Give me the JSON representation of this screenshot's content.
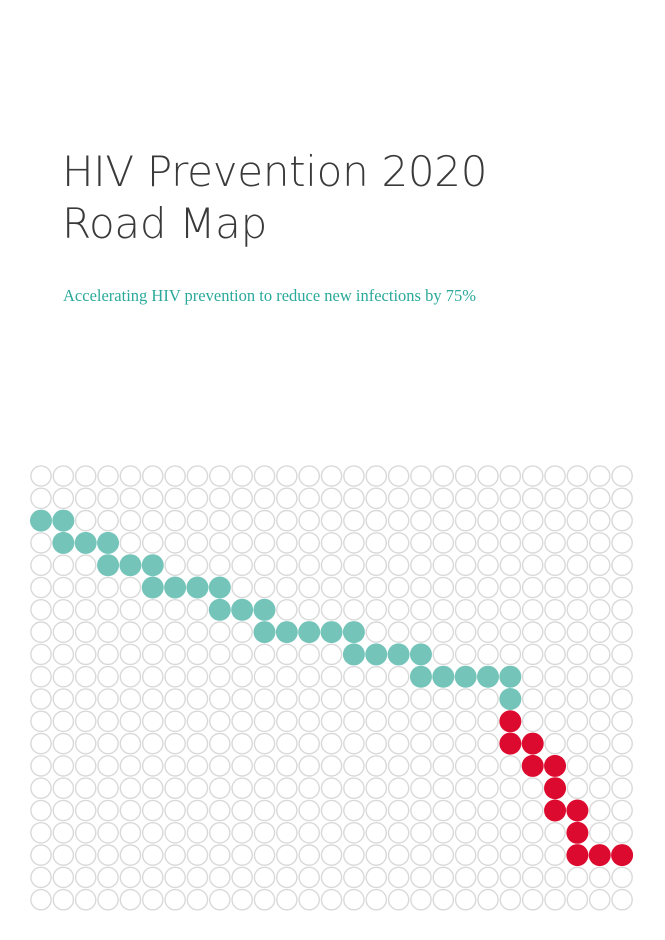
{
  "document": {
    "title_line1": "HIV Prevention 2020",
    "title_line2": "Road Map",
    "subtitle": "Accelerating HIV prevention to reduce new infections by 75%"
  },
  "colors": {
    "title": "#3a3a3a",
    "subtitle": "#2aa99b",
    "teal": "#74c4ba",
    "red": "#dc0a2e",
    "outline": "#d9d9d9"
  },
  "dot_grid": {
    "rows": 20,
    "cols": 27,
    "pitch_x": 22.35,
    "pitch_y": 22.3,
    "radius": 10.5,
    "teal_cells": [
      [
        2,
        0
      ],
      [
        2,
        1
      ],
      [
        3,
        1
      ],
      [
        3,
        2
      ],
      [
        3,
        3
      ],
      [
        4,
        3
      ],
      [
        4,
        4
      ],
      [
        4,
        5
      ],
      [
        5,
        5
      ],
      [
        5,
        6
      ],
      [
        5,
        7
      ],
      [
        5,
        8
      ],
      [
        6,
        8
      ],
      [
        6,
        9
      ],
      [
        6,
        10
      ],
      [
        7,
        10
      ],
      [
        7,
        11
      ],
      [
        7,
        12
      ],
      [
        7,
        13
      ],
      [
        7,
        14
      ],
      [
        8,
        14
      ],
      [
        8,
        15
      ],
      [
        8,
        16
      ],
      [
        8,
        17
      ],
      [
        9,
        17
      ],
      [
        9,
        18
      ],
      [
        9,
        19
      ],
      [
        9,
        20
      ],
      [
        9,
        21
      ],
      [
        10,
        21
      ]
    ],
    "red_cells": [
      [
        11,
        21
      ],
      [
        12,
        21
      ],
      [
        12,
        22
      ],
      [
        13,
        22
      ],
      [
        13,
        23
      ],
      [
        14,
        23
      ],
      [
        15,
        23
      ],
      [
        15,
        24
      ],
      [
        16,
        24
      ],
      [
        17,
        24
      ],
      [
        17,
        25
      ],
      [
        17,
        26
      ]
    ]
  }
}
